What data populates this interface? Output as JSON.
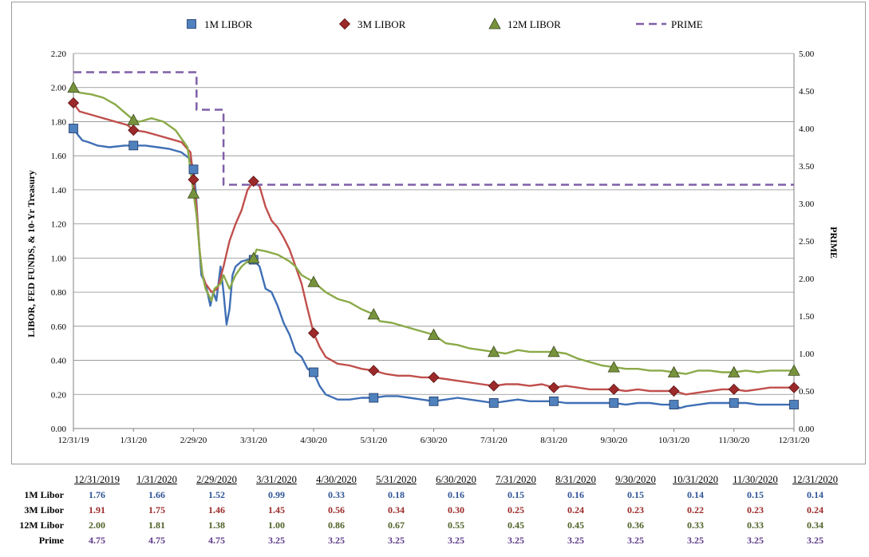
{
  "chart_data": {
    "type": "line",
    "ylabel": "LIBOR, FED FUNDS, & 10-Yr Treasury",
    "y2label": "PRIME",
    "ylim": [
      0,
      2.2
    ],
    "y2lim": [
      0,
      5
    ],
    "y_ticks": [
      "0.00",
      "0.20",
      "0.40",
      "0.60",
      "0.80",
      "1.00",
      "1.20",
      "1.40",
      "1.60",
      "1.80",
      "2.00",
      "2.20"
    ],
    "y2_ticks": [
      "0.00",
      "0.50",
      "1.00",
      "1.50",
      "2.00",
      "2.50",
      "3.00",
      "3.50",
      "4.00",
      "4.50",
      "5.00"
    ],
    "x_ticks": [
      "12/31/19",
      "1/31/20",
      "2/29/20",
      "3/31/20",
      "4/30/20",
      "5/31/20",
      "6/30/20",
      "7/31/20",
      "8/31/20",
      "9/30/20",
      "10/31/20",
      "11/30/20",
      "12/31/20"
    ],
    "legend_position": "top",
    "grid": true,
    "series": [
      {
        "name": "1M LIBOR",
        "marker": "square",
        "color": "#3F6FB5",
        "marker_color": "#4F81BD",
        "axis": "left",
        "points": [
          [
            0,
            1.76
          ],
          [
            0.08,
            1.72
          ],
          [
            0.15,
            1.69
          ],
          [
            0.25,
            1.68
          ],
          [
            0.4,
            1.66
          ],
          [
            0.6,
            1.65
          ],
          [
            0.85,
            1.66
          ],
          [
            1,
            1.66
          ],
          [
            1.2,
            1.66
          ],
          [
            1.4,
            1.65
          ],
          [
            1.6,
            1.64
          ],
          [
            1.8,
            1.62
          ],
          [
            1.95,
            1.58
          ],
          [
            2,
            1.52
          ],
          [
            2.04,
            1.38
          ],
          [
            2.08,
            1.15
          ],
          [
            2.13,
            0.9
          ],
          [
            2.2,
            0.85
          ],
          [
            2.28,
            0.72
          ],
          [
            2.33,
            0.8
          ],
          [
            2.38,
            0.75
          ],
          [
            2.45,
            0.95
          ],
          [
            2.5,
            0.8
          ],
          [
            2.55,
            0.61
          ],
          [
            2.6,
            0.7
          ],
          [
            2.65,
            0.9
          ],
          [
            2.7,
            0.95
          ],
          [
            2.8,
            0.98
          ],
          [
            2.9,
            0.99
          ],
          [
            3,
            0.99
          ],
          [
            3.1,
            0.95
          ],
          [
            3.2,
            0.82
          ],
          [
            3.3,
            0.8
          ],
          [
            3.4,
            0.72
          ],
          [
            3.5,
            0.62
          ],
          [
            3.6,
            0.55
          ],
          [
            3.7,
            0.45
          ],
          [
            3.8,
            0.42
          ],
          [
            3.9,
            0.35
          ],
          [
            4,
            0.33
          ],
          [
            4.1,
            0.25
          ],
          [
            4.2,
            0.2
          ],
          [
            4.4,
            0.17
          ],
          [
            4.6,
            0.17
          ],
          [
            4.8,
            0.18
          ],
          [
            5,
            0.18
          ],
          [
            5.2,
            0.19
          ],
          [
            5.4,
            0.19
          ],
          [
            5.6,
            0.18
          ],
          [
            5.8,
            0.17
          ],
          [
            6,
            0.16
          ],
          [
            6.2,
            0.17
          ],
          [
            6.4,
            0.18
          ],
          [
            6.6,
            0.17
          ],
          [
            6.8,
            0.16
          ],
          [
            7,
            0.15
          ],
          [
            7.2,
            0.16
          ],
          [
            7.4,
            0.17
          ],
          [
            7.6,
            0.16
          ],
          [
            7.8,
            0.16
          ],
          [
            8,
            0.16
          ],
          [
            8.2,
            0.15
          ],
          [
            8.4,
            0.15
          ],
          [
            8.6,
            0.15
          ],
          [
            8.8,
            0.15
          ],
          [
            9,
            0.15
          ],
          [
            9.2,
            0.14
          ],
          [
            9.4,
            0.15
          ],
          [
            9.6,
            0.15
          ],
          [
            9.8,
            0.14
          ],
          [
            10,
            0.14
          ],
          [
            10.1,
            0.12
          ],
          [
            10.2,
            0.13
          ],
          [
            10.4,
            0.14
          ],
          [
            10.6,
            0.15
          ],
          [
            10.8,
            0.15
          ],
          [
            11,
            0.15
          ],
          [
            11.2,
            0.15
          ],
          [
            11.4,
            0.14
          ],
          [
            11.6,
            0.14
          ],
          [
            11.8,
            0.14
          ],
          [
            12,
            0.14
          ]
        ],
        "markers": [
          1.76,
          1.66,
          1.52,
          0.99,
          0.33,
          0.18,
          0.16,
          0.15,
          0.16,
          0.15,
          0.14,
          0.15,
          0.14
        ]
      },
      {
        "name": "3M LIBOR",
        "marker": "diamond",
        "color": "#C0504D",
        "marker_color": "#9C2A2A",
        "axis": "left",
        "points": [
          [
            0,
            1.91
          ],
          [
            0.1,
            1.86
          ],
          [
            0.3,
            1.84
          ],
          [
            0.5,
            1.82
          ],
          [
            0.7,
            1.8
          ],
          [
            0.9,
            1.78
          ],
          [
            1,
            1.75
          ],
          [
            1.2,
            1.74
          ],
          [
            1.4,
            1.72
          ],
          [
            1.6,
            1.7
          ],
          [
            1.8,
            1.68
          ],
          [
            1.95,
            1.62
          ],
          [
            2,
            1.46
          ],
          [
            2.05,
            1.3
          ],
          [
            2.1,
            1.05
          ],
          [
            2.15,
            0.9
          ],
          [
            2.2,
            0.85
          ],
          [
            2.3,
            0.8
          ],
          [
            2.4,
            0.82
          ],
          [
            2.5,
            0.95
          ],
          [
            2.6,
            1.1
          ],
          [
            2.7,
            1.2
          ],
          [
            2.8,
            1.28
          ],
          [
            2.9,
            1.4
          ],
          [
            3,
            1.45
          ],
          [
            3.1,
            1.42
          ],
          [
            3.2,
            1.3
          ],
          [
            3.3,
            1.22
          ],
          [
            3.4,
            1.18
          ],
          [
            3.5,
            1.12
          ],
          [
            3.6,
            1.05
          ],
          [
            3.7,
            0.95
          ],
          [
            3.8,
            0.85
          ],
          [
            3.9,
            0.7
          ],
          [
            4,
            0.56
          ],
          [
            4.1,
            0.48
          ],
          [
            4.2,
            0.42
          ],
          [
            4.4,
            0.38
          ],
          [
            4.6,
            0.37
          ],
          [
            4.8,
            0.35
          ],
          [
            5,
            0.34
          ],
          [
            5.2,
            0.32
          ],
          [
            5.4,
            0.31
          ],
          [
            5.6,
            0.31
          ],
          [
            5.8,
            0.3
          ],
          [
            6,
            0.3
          ],
          [
            6.2,
            0.29
          ],
          [
            6.4,
            0.28
          ],
          [
            6.6,
            0.27
          ],
          [
            6.8,
            0.26
          ],
          [
            7,
            0.25
          ],
          [
            7.2,
            0.26
          ],
          [
            7.4,
            0.26
          ],
          [
            7.6,
            0.25
          ],
          [
            7.8,
            0.26
          ],
          [
            8,
            0.24
          ],
          [
            8.2,
            0.25
          ],
          [
            8.4,
            0.24
          ],
          [
            8.6,
            0.23
          ],
          [
            8.8,
            0.23
          ],
          [
            9,
            0.23
          ],
          [
            9.2,
            0.22
          ],
          [
            9.4,
            0.23
          ],
          [
            9.6,
            0.22
          ],
          [
            9.8,
            0.22
          ],
          [
            10,
            0.22
          ],
          [
            10.2,
            0.2
          ],
          [
            10.4,
            0.21
          ],
          [
            10.6,
            0.22
          ],
          [
            10.8,
            0.23
          ],
          [
            11,
            0.23
          ],
          [
            11.2,
            0.22
          ],
          [
            11.4,
            0.23
          ],
          [
            11.6,
            0.24
          ],
          [
            11.8,
            0.24
          ],
          [
            12,
            0.24
          ]
        ],
        "markers": [
          1.91,
          1.75,
          1.46,
          1.45,
          0.56,
          0.34,
          0.3,
          0.25,
          0.24,
          0.23,
          0.22,
          0.23,
          0.24
        ]
      },
      {
        "name": "12M LIBOR",
        "marker": "triangle",
        "color": "#8AAA48",
        "marker_color": "#77933C",
        "axis": "left",
        "points": [
          [
            0,
            2.0
          ],
          [
            0.1,
            1.97
          ],
          [
            0.3,
            1.96
          ],
          [
            0.5,
            1.94
          ],
          [
            0.7,
            1.9
          ],
          [
            0.9,
            1.84
          ],
          [
            1,
            1.81
          ],
          [
            1.1,
            1.8
          ],
          [
            1.3,
            1.82
          ],
          [
            1.5,
            1.8
          ],
          [
            1.7,
            1.75
          ],
          [
            1.9,
            1.65
          ],
          [
            2,
            1.38
          ],
          [
            2.05,
            1.25
          ],
          [
            2.1,
            1.05
          ],
          [
            2.15,
            0.9
          ],
          [
            2.2,
            0.82
          ],
          [
            2.3,
            0.75
          ],
          [
            2.35,
            0.82
          ],
          [
            2.45,
            0.85
          ],
          [
            2.5,
            0.9
          ],
          [
            2.6,
            0.82
          ],
          [
            2.7,
            0.9
          ],
          [
            2.8,
            0.95
          ],
          [
            2.9,
            0.98
          ],
          [
            3,
            1.0
          ],
          [
            3.05,
            1.05
          ],
          [
            3.2,
            1.04
          ],
          [
            3.4,
            1.02
          ],
          [
            3.6,
            0.98
          ],
          [
            3.7,
            0.95
          ],
          [
            3.8,
            0.9
          ],
          [
            3.9,
            0.88
          ],
          [
            4,
            0.86
          ],
          [
            4.2,
            0.8
          ],
          [
            4.4,
            0.76
          ],
          [
            4.6,
            0.74
          ],
          [
            4.8,
            0.7
          ],
          [
            5,
            0.67
          ],
          [
            5.1,
            0.63
          ],
          [
            5.3,
            0.62
          ],
          [
            5.5,
            0.6
          ],
          [
            5.7,
            0.58
          ],
          [
            5.9,
            0.56
          ],
          [
            6,
            0.55
          ],
          [
            6.2,
            0.5
          ],
          [
            6.4,
            0.49
          ],
          [
            6.6,
            0.47
          ],
          [
            6.8,
            0.46
          ],
          [
            7,
            0.45
          ],
          [
            7.2,
            0.44
          ],
          [
            7.4,
            0.46
          ],
          [
            7.6,
            0.45
          ],
          [
            7.8,
            0.45
          ],
          [
            8,
            0.45
          ],
          [
            8.2,
            0.44
          ],
          [
            8.4,
            0.41
          ],
          [
            8.6,
            0.39
          ],
          [
            8.8,
            0.37
          ],
          [
            9,
            0.36
          ],
          [
            9.2,
            0.35
          ],
          [
            9.4,
            0.35
          ],
          [
            9.6,
            0.34
          ],
          [
            9.8,
            0.34
          ],
          [
            10,
            0.33
          ],
          [
            10.2,
            0.32
          ],
          [
            10.4,
            0.34
          ],
          [
            10.6,
            0.34
          ],
          [
            10.8,
            0.33
          ],
          [
            11,
            0.33
          ],
          [
            11.2,
            0.34
          ],
          [
            11.4,
            0.33
          ],
          [
            11.6,
            0.34
          ],
          [
            11.8,
            0.34
          ],
          [
            12,
            0.34
          ]
        ],
        "markers": [
          2.0,
          1.81,
          1.38,
          1.0,
          0.86,
          0.67,
          0.55,
          0.45,
          0.45,
          0.36,
          0.33,
          0.33,
          0.34
        ]
      },
      {
        "name": "PRIME",
        "marker": "none",
        "dashed": true,
        "color": "#7F5FA8",
        "axis": "right",
        "points": [
          [
            0,
            4.75
          ],
          [
            2.05,
            4.75
          ],
          [
            2.05,
            4.25
          ],
          [
            2.5,
            4.25
          ],
          [
            2.5,
            3.25
          ],
          [
            12,
            3.25
          ]
        ],
        "markers": []
      }
    ]
  },
  "table": {
    "dates": [
      "12/31/2019",
      "1/31/2020",
      "2/29/2020",
      "3/31/2020",
      "4/30/2020",
      "5/31/2020",
      "6/30/2020",
      "7/31/2020",
      "8/31/2020",
      "9/30/2020",
      "10/31/2020",
      "11/30/2020",
      "12/31/2020"
    ],
    "rows": [
      {
        "label": "1M Libor",
        "cls": "c-1m",
        "values": [
          "1.76",
          "1.66",
          "1.52",
          "0.99",
          "0.33",
          "0.18",
          "0.16",
          "0.15",
          "0.16",
          "0.15",
          "0.14",
          "0.15",
          "0.14"
        ]
      },
      {
        "label": "3M Libor",
        "cls": "c-3m",
        "values": [
          "1.91",
          "1.75",
          "1.46",
          "1.45",
          "0.56",
          "0.34",
          "0.30",
          "0.25",
          "0.24",
          "0.23",
          "0.22",
          "0.23",
          "0.24"
        ]
      },
      {
        "label": "12M Libor",
        "cls": "c-12m",
        "values": [
          "2.00",
          "1.81",
          "1.38",
          "1.00",
          "0.86",
          "0.67",
          "0.55",
          "0.45",
          "0.45",
          "0.36",
          "0.33",
          "0.33",
          "0.34"
        ]
      },
      {
        "label": "Prime",
        "cls": "c-prime",
        "values": [
          "4.75",
          "4.75",
          "4.75",
          "3.25",
          "3.25",
          "3.25",
          "3.25",
          "3.25",
          "3.25",
          "3.25",
          "3.25",
          "3.25",
          "3.25"
        ]
      }
    ]
  }
}
